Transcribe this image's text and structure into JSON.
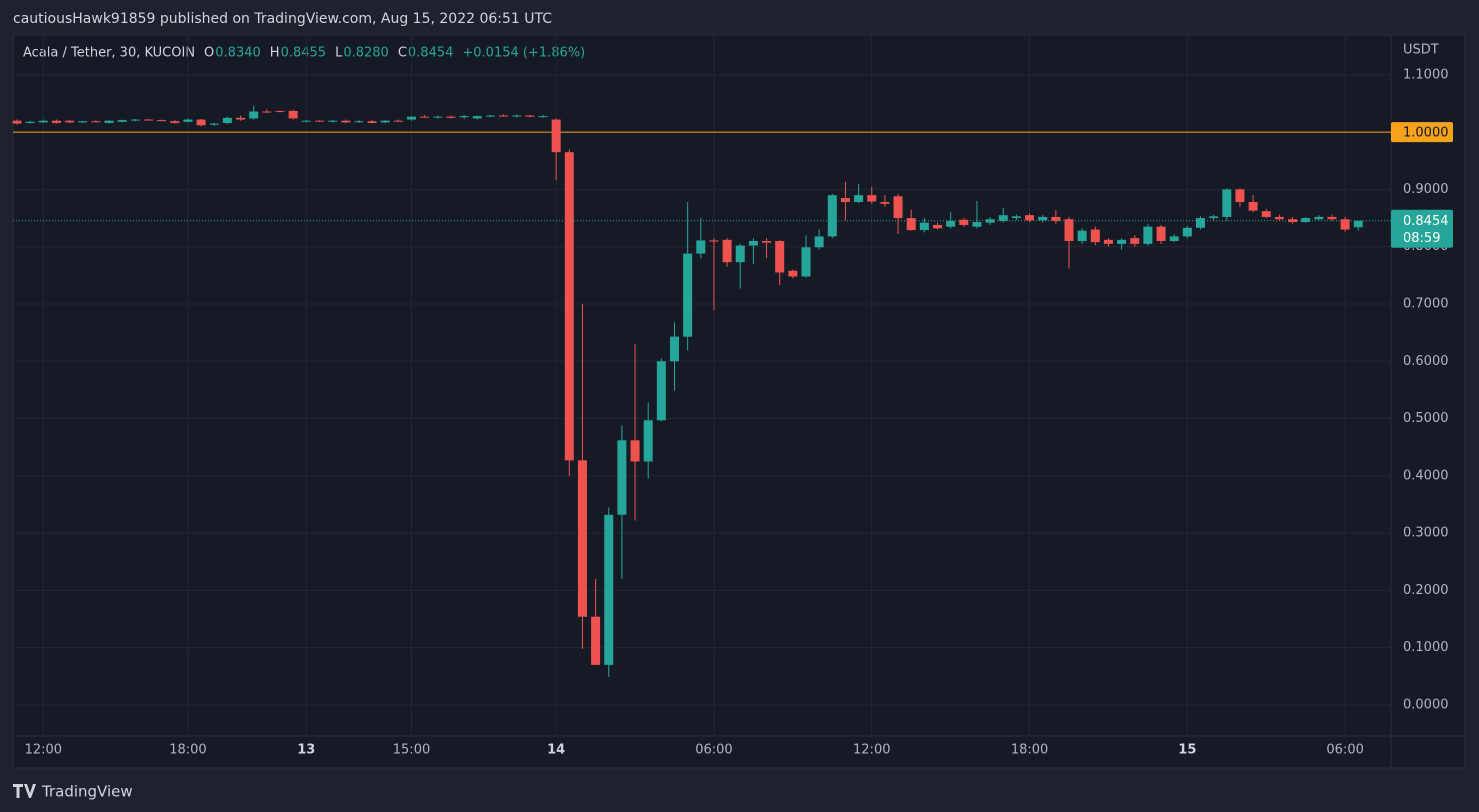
{
  "author_line": "cautiousHawk91859 published on TradingView.com, Aug 15, 2022 06:51 UTC",
  "brand": "TradingView",
  "chart_data": {
    "type": "candlestick",
    "legend": {
      "symbol": "Acala / Tether, 30, KUCOIN",
      "open_label": "O",
      "open": "0.8340",
      "high_label": "H",
      "high": "0.8455",
      "low_label": "L",
      "low": "0.8280",
      "close_label": "C",
      "close": "0.8454",
      "change": "+0.0154 (+1.86%)"
    },
    "y_axis_unit": "USDT",
    "up_color": "#26a69a",
    "down_color": "#ef5350",
    "categories": [
      null,
      null,
      "12:00",
      null,
      null,
      null,
      null,
      null,
      null,
      null,
      null,
      null,
      null,
      "18:00",
      null,
      null,
      null,
      null,
      null,
      null,
      null,
      null,
      "13",
      null,
      null,
      null,
      null,
      null,
      null,
      null,
      "15:00",
      null,
      null,
      null,
      null,
      null,
      null,
      null,
      null,
      null,
      null,
      "14",
      null,
      null,
      null,
      null,
      null,
      null,
      null,
      null,
      null,
      null,
      null,
      "06:00",
      null,
      null,
      null,
      null,
      null,
      null,
      null,
      null,
      null,
      null,
      null,
      "12:00",
      null,
      null,
      null,
      null,
      null,
      null,
      null,
      null,
      null,
      null,
      null,
      "18:00",
      null,
      null,
      null,
      null,
      null,
      null,
      null,
      null,
      null,
      null,
      null,
      "15",
      null,
      null,
      null,
      null,
      null,
      null,
      null,
      null,
      null,
      null,
      null,
      "06:00",
      null
    ],
    "open": [
      1.02,
      1.016,
      1.017,
      1.02,
      1.02,
      1.017,
      1.019,
      1.016,
      1.018,
      1.021,
      1.022,
      1.021,
      1.019,
      1.018,
      1.022,
      1.013,
      1.016,
      1.025,
      1.024,
      1.036,
      1.037,
      1.037,
      1.019,
      1.02,
      1.019,
      1.02,
      1.018,
      1.019,
      1.017,
      1.02,
      1.022,
      1.027,
      1.026,
      1.027,
      1.026,
      1.024,
      1.028,
      1.029,
      1.028,
      1.029,
      1.027,
      1.022,
      0.965,
      0.427,
      0.154,
      0.07,
      0.332,
      0.462,
      0.425,
      0.497,
      0.6,
      0.643,
      0.788,
      0.811,
      0.812,
      0.773,
      0.802,
      0.81,
      0.81,
      0.758,
      0.748,
      0.799,
      0.818,
      0.885,
      0.878,
      0.89,
      0.878,
      0.888,
      0.85,
      0.829,
      0.838,
      0.835,
      0.847,
      0.835,
      0.842,
      0.845,
      0.85,
      0.855,
      0.846,
      0.852,
      0.848,
      0.81,
      0.83,
      0.812,
      0.805,
      0.815,
      0.805,
      0.835,
      0.81,
      0.818,
      0.833,
      0.85,
      0.852,
      0.9,
      0.878,
      0.862,
      0.852,
      0.848,
      0.843,
      0.848,
      0.852,
      0.848,
      0.834
    ],
    "high": [
      1.022,
      1.02,
      1.022,
      1.022,
      1.021,
      1.02,
      1.021,
      1.021,
      1.022,
      1.023,
      1.023,
      1.022,
      1.021,
      1.024,
      1.023,
      1.016,
      1.027,
      1.029,
      1.046,
      1.04,
      1.038,
      1.039,
      1.021,
      1.021,
      1.021,
      1.022,
      1.021,
      1.021,
      1.021,
      1.022,
      1.028,
      1.03,
      1.029,
      1.029,
      1.03,
      1.029,
      1.03,
      1.031,
      1.031,
      1.03,
      1.03,
      1.024,
      0.97,
      0.7,
      0.22,
      0.345,
      0.488,
      0.63,
      0.528,
      0.605,
      0.668,
      0.878,
      0.85,
      0.815,
      0.815,
      0.805,
      0.815,
      0.815,
      0.812,
      0.76,
      0.82,
      0.83,
      0.892,
      0.913,
      0.91,
      0.905,
      0.89,
      0.892,
      0.865,
      0.85,
      0.842,
      0.86,
      0.85,
      0.88,
      0.852,
      0.868,
      0.856,
      0.858,
      0.855,
      0.864,
      0.852,
      0.832,
      0.835,
      0.815,
      0.815,
      0.82,
      0.84,
      0.838,
      0.822,
      0.836,
      0.853,
      0.856,
      0.902,
      0.902,
      0.89,
      0.866,
      0.856,
      0.852,
      0.852,
      0.855,
      0.856,
      0.852,
      0.8455
    ],
    "low": [
      1.013,
      1.015,
      1.016,
      1.015,
      1.016,
      1.016,
      1.017,
      1.015,
      1.017,
      1.019,
      1.02,
      1.019,
      1.015,
      1.017,
      1.01,
      1.011,
      1.014,
      1.02,
      1.022,
      1.033,
      1.034,
      1.022,
      1.017,
      1.018,
      1.017,
      1.016,
      1.016,
      1.015,
      1.016,
      1.018,
      1.02,
      1.025,
      1.024,
      1.024,
      1.023,
      1.022,
      1.026,
      1.027,
      1.026,
      1.026,
      1.025,
      0.916,
      0.4,
      0.098,
      0.07,
      0.049,
      0.22,
      0.322,
      0.395,
      0.495,
      0.549,
      0.619,
      0.78,
      0.689,
      0.765,
      0.727,
      0.77,
      0.78,
      0.733,
      0.745,
      0.746,
      0.795,
      0.815,
      0.846,
      0.876,
      0.875,
      0.87,
      0.822,
      0.828,
      0.825,
      0.83,
      0.832,
      0.835,
      0.832,
      0.838,
      0.842,
      0.846,
      0.843,
      0.842,
      0.84,
      0.762,
      0.805,
      0.803,
      0.8,
      0.795,
      0.8,
      0.802,
      0.805,
      0.808,
      0.815,
      0.83,
      0.845,
      0.845,
      0.87,
      0.86,
      0.85,
      0.845,
      0.84,
      0.842,
      0.846,
      0.845,
      0.826,
      0.828
    ],
    "close": [
      1.015,
      1.018,
      1.02,
      1.016,
      1.017,
      1.019,
      1.018,
      1.02,
      1.021,
      1.022,
      1.021,
      1.02,
      1.016,
      1.022,
      1.012,
      1.015,
      1.025,
      1.022,
      1.036,
      1.035,
      1.036,
      1.024,
      1.02,
      1.019,
      1.02,
      1.017,
      1.019,
      1.016,
      1.02,
      1.019,
      1.027,
      1.026,
      1.027,
      1.025,
      1.028,
      1.028,
      1.029,
      1.028,
      1.029,
      1.027,
      1.028,
      0.965,
      0.427,
      0.154,
      0.07,
      0.332,
      0.462,
      0.425,
      0.497,
      0.6,
      0.643,
      0.788,
      0.811,
      0.809,
      0.773,
      0.802,
      0.81,
      0.807,
      0.755,
      0.748,
      0.799,
      0.818,
      0.89,
      0.878,
      0.89,
      0.879,
      0.875,
      0.85,
      0.829,
      0.842,
      0.832,
      0.845,
      0.838,
      0.843,
      0.848,
      0.855,
      0.853,
      0.846,
      0.852,
      0.845,
      0.81,
      0.828,
      0.808,
      0.805,
      0.812,
      0.805,
      0.835,
      0.81,
      0.818,
      0.833,
      0.85,
      0.853,
      0.9,
      0.878,
      0.863,
      0.852,
      0.848,
      0.843,
      0.85,
      0.852,
      0.848,
      0.83,
      0.8454
    ],
    "ylim": [
      -0.0542,
      1.1696
    ],
    "yticks": [
      {
        "value": 0,
        "label": "0.0000"
      },
      {
        "value": 0.1,
        "label": "0.1000"
      },
      {
        "value": 0.2,
        "label": "0.2000"
      },
      {
        "value": 0.3,
        "label": "0.3000"
      },
      {
        "value": 0.4,
        "label": "0.4000"
      },
      {
        "value": 0.5,
        "label": "0.5000"
      },
      {
        "value": 0.6,
        "label": "0.6000"
      },
      {
        "value": 0.7,
        "label": "0.7000"
      },
      {
        "value": 0.8,
        "label": "0.8000"
      },
      {
        "value": 0.9,
        "label": "0.9000"
      },
      {
        "value": 1.1,
        "label": "1.1000"
      }
    ],
    "grid": true,
    "horizontal_line": {
      "value": 1,
      "label": "1.0000",
      "color": "#f7a21b"
    },
    "last_price": {
      "value": 0.8454,
      "label": "0.8454",
      "countdown": "08:59",
      "color": "#26a69a"
    }
  }
}
